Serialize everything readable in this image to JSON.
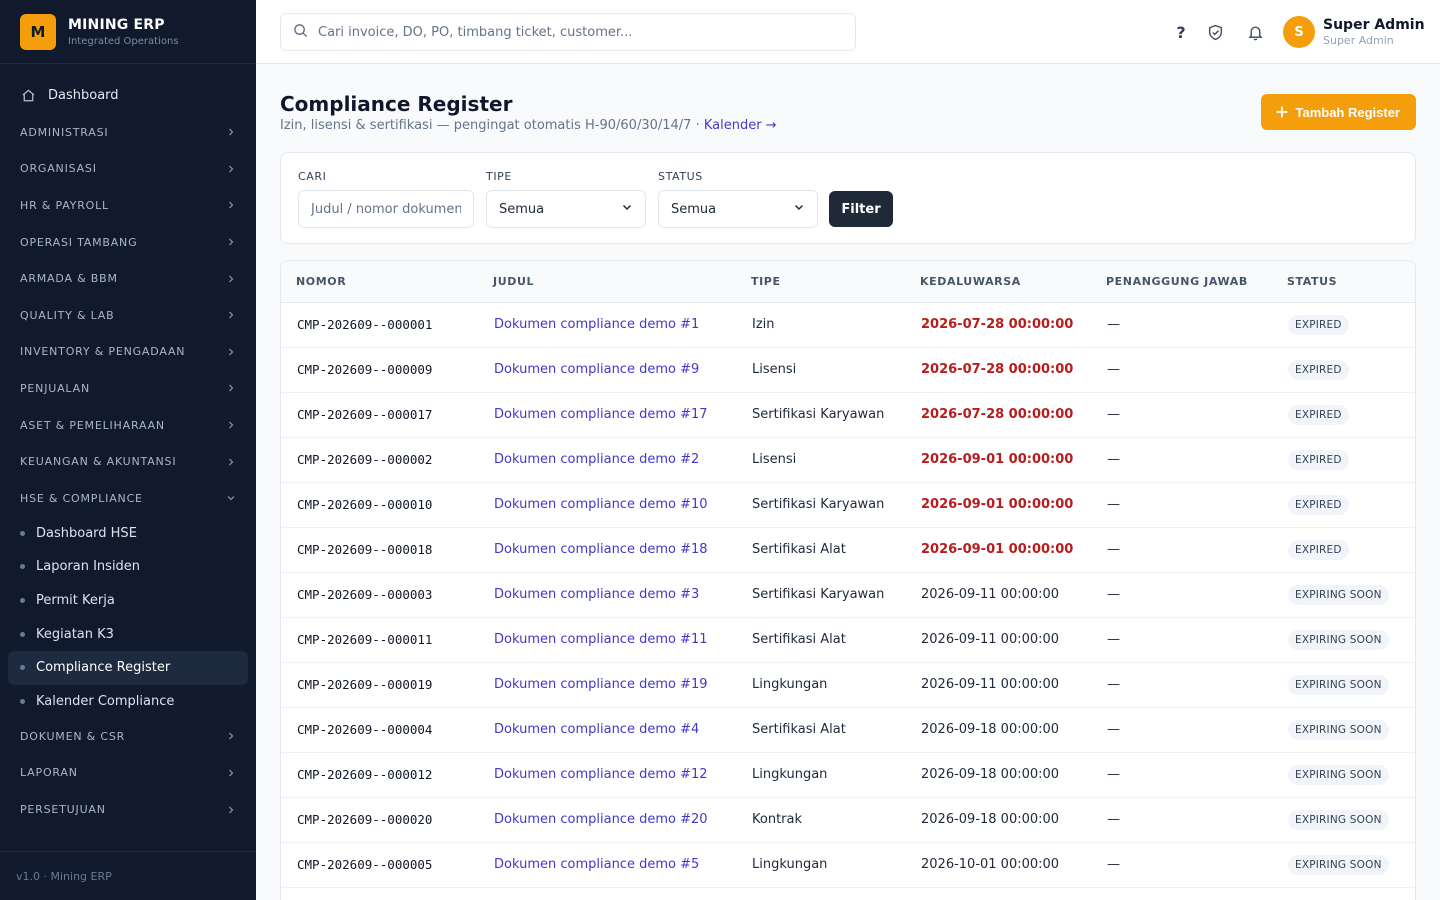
{
  "brand": {
    "logo_letter": "M",
    "title": "MINING ERP",
    "subtitle": "Integrated Operations"
  },
  "sidebar": {
    "dashboard_label": "Dashboard",
    "groups_top": [
      {
        "label": "ADMINISTRASI"
      },
      {
        "label": "ORGANISASI"
      },
      {
        "label": "HR & PAYROLL"
      },
      {
        "label": "OPERASI TAMBANG"
      },
      {
        "label": "ARMADA & BBM"
      },
      {
        "label": "QUALITY & LAB"
      },
      {
        "label": "INVENTORY & PENGADAAN"
      },
      {
        "label": "PENJUALAN"
      },
      {
        "label": "ASET & PEMELIHARAAN"
      },
      {
        "label": "KEUANGAN & AKUNTANSI"
      }
    ],
    "expanded_group": {
      "label": "HSE & COMPLIANCE"
    },
    "sub_items": [
      {
        "label": "Dashboard HSE"
      },
      {
        "label": "Laporan Insiden"
      },
      {
        "label": "Permit Kerja"
      },
      {
        "label": "Kegiatan K3"
      },
      {
        "label": "Compliance Register",
        "active": true
      },
      {
        "label": "Kalender Compliance"
      }
    ],
    "groups_bottom": [
      {
        "label": "DOKUMEN & CSR"
      },
      {
        "label": "LAPORAN"
      },
      {
        "label": "PERSETUJUAN"
      }
    ],
    "footer": "v1.0 · Mining ERP"
  },
  "topbar": {
    "search_placeholder": "Cari invoice, DO, PO, timbang ticket, customer...",
    "help_glyph": "?",
    "user": {
      "initial": "S",
      "name": "Super Admin",
      "role": "Super Admin"
    }
  },
  "page": {
    "title": "Compliance Register",
    "subtitle": "Izin, lisensi & sertifikasi — pengingat otomatis H-90/60/30/14/7 · ",
    "calendar_link": "Kalender →",
    "add_button": "Tambah Register"
  },
  "filters": {
    "search_label": "CARI",
    "search_placeholder": "Judul / nomor dokumen...",
    "type_label": "TIPE",
    "type_value": "Semua",
    "status_label": "STATUS",
    "status_value": "Semua",
    "filter_button": "Filter"
  },
  "table": {
    "columns": [
      "NOMOR",
      "JUDUL",
      "TIPE",
      "KEDALUWARSA",
      "PENANGGUNG JAWAB",
      "STATUS"
    ],
    "rows": [
      {
        "nomor": "CMP-202609--000001",
        "judul": "Dokumen compliance demo #1",
        "tipe": "Izin",
        "kedaluwarsa": "2026-07-28 00:00:00",
        "pj": "—",
        "status": "EXPIRED",
        "expired": true
      },
      {
        "nomor": "CMP-202609--000009",
        "judul": "Dokumen compliance demo #9",
        "tipe": "Lisensi",
        "kedaluwarsa": "2026-07-28 00:00:00",
        "pj": "—",
        "status": "EXPIRED",
        "expired": true
      },
      {
        "nomor": "CMP-202609--000017",
        "judul": "Dokumen compliance demo #17",
        "tipe": "Sertifikasi Karyawan",
        "kedaluwarsa": "2026-07-28 00:00:00",
        "pj": "—",
        "status": "EXPIRED",
        "expired": true
      },
      {
        "nomor": "CMP-202609--000002",
        "judul": "Dokumen compliance demo #2",
        "tipe": "Lisensi",
        "kedaluwarsa": "2026-09-01 00:00:00",
        "pj": "—",
        "status": "EXPIRED",
        "expired": true
      },
      {
        "nomor": "CMP-202609--000010",
        "judul": "Dokumen compliance demo #10",
        "tipe": "Sertifikasi Karyawan",
        "kedaluwarsa": "2026-09-01 00:00:00",
        "pj": "—",
        "status": "EXPIRED",
        "expired": true
      },
      {
        "nomor": "CMP-202609--000018",
        "judul": "Dokumen compliance demo #18",
        "tipe": "Sertifikasi Alat",
        "kedaluwarsa": "2026-09-01 00:00:00",
        "pj": "—",
        "status": "EXPIRED",
        "expired": true
      },
      {
        "nomor": "CMP-202609--000003",
        "judul": "Dokumen compliance demo #3",
        "tipe": "Sertifikasi Karyawan",
        "kedaluwarsa": "2026-09-11 00:00:00",
        "pj": "—",
        "status": "EXPIRING SOON",
        "expired": false
      },
      {
        "nomor": "CMP-202609--000011",
        "judul": "Dokumen compliance demo #11",
        "tipe": "Sertifikasi Alat",
        "kedaluwarsa": "2026-09-11 00:00:00",
        "pj": "—",
        "status": "EXPIRING SOON",
        "expired": false
      },
      {
        "nomor": "CMP-202609--000019",
        "judul": "Dokumen compliance demo #19",
        "tipe": "Lingkungan",
        "kedaluwarsa": "2026-09-11 00:00:00",
        "pj": "—",
        "status": "EXPIRING SOON",
        "expired": false
      },
      {
        "nomor": "CMP-202609--000004",
        "judul": "Dokumen compliance demo #4",
        "tipe": "Sertifikasi Alat",
        "kedaluwarsa": "2026-09-18 00:00:00",
        "pj": "—",
        "status": "EXPIRING SOON",
        "expired": false
      },
      {
        "nomor": "CMP-202609--000012",
        "judul": "Dokumen compliance demo #12",
        "tipe": "Lingkungan",
        "kedaluwarsa": "2026-09-18 00:00:00",
        "pj": "—",
        "status": "EXPIRING SOON",
        "expired": false
      },
      {
        "nomor": "CMP-202609--000020",
        "judul": "Dokumen compliance demo #20",
        "tipe": "Kontrak",
        "kedaluwarsa": "2026-09-18 00:00:00",
        "pj": "—",
        "status": "EXPIRING SOON",
        "expired": false
      },
      {
        "nomor": "CMP-202609--000005",
        "judul": "Dokumen compliance demo #5",
        "tipe": "Lingkungan",
        "kedaluwarsa": "2026-10-01 00:00:00",
        "pj": "—",
        "status": "EXPIRING SOON",
        "expired": false
      }
    ]
  },
  "colors": {
    "accent": "#f59e0b",
    "sidebar_bg": "#111a2c",
    "link": "#4338ca",
    "expired_date": "#b91c1c"
  }
}
